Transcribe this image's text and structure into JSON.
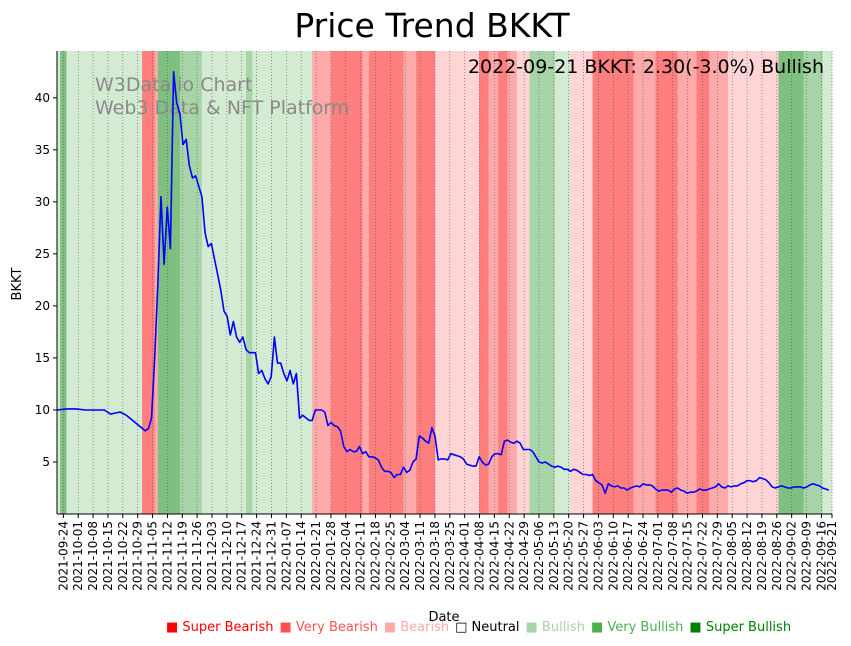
{
  "chart_data": {
    "type": "line",
    "title": "Price Trend BKKT",
    "xlabel": "Date",
    "ylabel": "BKKT",
    "ylim": [
      0,
      44.5
    ],
    "yticks": [
      5,
      10,
      15,
      20,
      25,
      30,
      35,
      40
    ],
    "x_range": [
      "2021-09-21",
      "2022-09-21"
    ],
    "x_ticks": [
      "2021-09-24",
      "2021-10-01",
      "2021-10-08",
      "2021-10-15",
      "2021-10-22",
      "2021-10-29",
      "2021-11-05",
      "2021-11-12",
      "2021-11-19",
      "2021-11-26",
      "2021-12-03",
      "2021-12-10",
      "2021-12-17",
      "2021-12-24",
      "2021-12-31",
      "2022-01-07",
      "2022-01-14",
      "2022-01-21",
      "2022-01-28",
      "2022-02-04",
      "2022-02-11",
      "2022-02-18",
      "2022-02-25",
      "2022-03-04",
      "2022-03-11",
      "2022-03-18",
      "2022-03-25",
      "2022-04-01",
      "2022-04-08",
      "2022-04-15",
      "2022-04-22",
      "2022-04-29",
      "2022-05-06",
      "2022-05-13",
      "2022-05-20",
      "2022-05-27",
      "2022-06-03",
      "2022-06-10",
      "2022-06-17",
      "2022-06-24",
      "2022-07-01",
      "2022-07-08",
      "2022-07-15",
      "2022-07-22",
      "2022-07-29",
      "2022-08-05",
      "2022-08-12",
      "2022-08-19",
      "2022-08-26",
      "2022-09-02",
      "2022-09-09",
      "2022-09-16",
      "2022-09-21"
    ],
    "annotation": "2022-09-21 BKKT: 2.30(-3.0%) Bullish",
    "watermark": [
      "W3Data.io Chart",
      "Web3 Data & NFT Platform"
    ],
    "line_color": "#0000ff",
    "series": [
      {
        "name": "BKKT",
        "points": [
          [
            0,
            10.0
          ],
          [
            3,
            10.1
          ],
          [
            6,
            10.1
          ],
          [
            9,
            10.0
          ],
          [
            12,
            10.0
          ],
          [
            15,
            10.0
          ],
          [
            17,
            9.6
          ],
          [
            20,
            9.8
          ],
          [
            22,
            9.5
          ],
          [
            24,
            9.0
          ],
          [
            26,
            8.5
          ],
          [
            28,
            8.0
          ],
          [
            29,
            8.2
          ],
          [
            30,
            9.2
          ],
          [
            31,
            15.0
          ],
          [
            32,
            22.0
          ],
          [
            33,
            30.5
          ],
          [
            34,
            24.0
          ],
          [
            35,
            29.5
          ],
          [
            36,
            25.5
          ],
          [
            37,
            42.5
          ],
          [
            38,
            39.5
          ],
          [
            39,
            38.5
          ],
          [
            40,
            35.5
          ],
          [
            41,
            36.0
          ],
          [
            42,
            33.5
          ],
          [
            43,
            32.3
          ],
          [
            44,
            32.5
          ],
          [
            45,
            31.5
          ],
          [
            46,
            30.5
          ],
          [
            47,
            27.0
          ],
          [
            48,
            25.7
          ],
          [
            49,
            26.0
          ],
          [
            50,
            24.5
          ],
          [
            51,
            23.0
          ],
          [
            52,
            21.5
          ],
          [
            53,
            19.5
          ],
          [
            54,
            19.0
          ],
          [
            55,
            17.2
          ],
          [
            56,
            18.5
          ],
          [
            57,
            17.0
          ],
          [
            58,
            16.5
          ],
          [
            59,
            17.0
          ],
          [
            60,
            15.8
          ],
          [
            61,
            15.5
          ],
          [
            63,
            15.5
          ],
          [
            64,
            13.5
          ],
          [
            65,
            13.8
          ],
          [
            66,
            13.0
          ],
          [
            67,
            12.5
          ],
          [
            68,
            13.2
          ],
          [
            69,
            17.0
          ],
          [
            70,
            14.5
          ],
          [
            71,
            14.5
          ],
          [
            72,
            13.5
          ],
          [
            73,
            12.8
          ],
          [
            74,
            13.8
          ],
          [
            75,
            12.5
          ],
          [
            76,
            13.5
          ],
          [
            77,
            9.2
          ],
          [
            78,
            9.5
          ],
          [
            80,
            9.0
          ],
          [
            81,
            9.0
          ],
          [
            82,
            10.0
          ],
          [
            84,
            10.0
          ],
          [
            85,
            9.8
          ],
          [
            86,
            8.5
          ],
          [
            87,
            8.8
          ],
          [
            88,
            8.5
          ],
          [
            89,
            8.4
          ],
          [
            90,
            8.0
          ],
          [
            91,
            6.5
          ],
          [
            92,
            6.0
          ],
          [
            93,
            6.2
          ],
          [
            94,
            6.0
          ],
          [
            95,
            6.0
          ],
          [
            96,
            6.5
          ],
          [
            97,
            5.8
          ],
          [
            98,
            6.0
          ],
          [
            99,
            5.5
          ],
          [
            100,
            5.5
          ],
          [
            101,
            5.4
          ],
          [
            102,
            5.2
          ],
          [
            103,
            4.5
          ],
          [
            104,
            4.1
          ],
          [
            105,
            4.1
          ],
          [
            106,
            4.0
          ],
          [
            107,
            3.5
          ],
          [
            108,
            3.8
          ],
          [
            109,
            3.8
          ],
          [
            110,
            4.5
          ],
          [
            111,
            4.0
          ],
          [
            112,
            4.2
          ],
          [
            113,
            5.0
          ],
          [
            114,
            5.3
          ],
          [
            115,
            7.5
          ],
          [
            116,
            7.3
          ],
          [
            117,
            7.0
          ],
          [
            118,
            6.8
          ],
          [
            119,
            8.3
          ],
          [
            120,
            7.5
          ],
          [
            121,
            5.2
          ],
          [
            122,
            5.3
          ],
          [
            123,
            5.3
          ],
          [
            124,
            5.2
          ],
          [
            125,
            5.8
          ],
          [
            126,
            5.7
          ],
          [
            127,
            5.6
          ],
          [
            128,
            5.5
          ],
          [
            129,
            5.3
          ],
          [
            130,
            4.8
          ],
          [
            131,
            4.7
          ],
          [
            132,
            4.6
          ],
          [
            133,
            4.6
          ],
          [
            134,
            5.5
          ],
          [
            135,
            5.0
          ],
          [
            136,
            4.7
          ],
          [
            137,
            4.8
          ],
          [
            138,
            5.5
          ],
          [
            139,
            5.8
          ],
          [
            140,
            5.8
          ],
          [
            141,
            5.7
          ],
          [
            142,
            7.0
          ],
          [
            143,
            7.1
          ],
          [
            144,
            6.9
          ],
          [
            145,
            6.8
          ],
          [
            146,
            7.0
          ],
          [
            147,
            6.8
          ],
          [
            148,
            6.2
          ],
          [
            149,
            6.2
          ],
          [
            150,
            6.2
          ],
          [
            151,
            6.0
          ],
          [
            152,
            5.5
          ],
          [
            153,
            5.0
          ],
          [
            154,
            4.9
          ],
          [
            155,
            5.0
          ],
          [
            156,
            4.8
          ],
          [
            157,
            4.6
          ],
          [
            158,
            4.5
          ],
          [
            159,
            4.6
          ],
          [
            160,
            4.5
          ],
          [
            161,
            4.3
          ],
          [
            162,
            4.3
          ],
          [
            163,
            4.1
          ],
          [
            164,
            4.3
          ],
          [
            165,
            4.2
          ],
          [
            166,
            4.0
          ],
          [
            167,
            3.8
          ],
          [
            168,
            3.8
          ],
          [
            169,
            3.7
          ],
          [
            170,
            3.8
          ],
          [
            171,
            3.2
          ],
          [
            172,
            3.0
          ],
          [
            173,
            2.8
          ],
          [
            174,
            2.0
          ],
          [
            175,
            2.9
          ],
          [
            176,
            2.7
          ],
          [
            177,
            2.6
          ],
          [
            178,
            2.7
          ],
          [
            179,
            2.5
          ],
          [
            180,
            2.5
          ],
          [
            181,
            2.3
          ],
          [
            182,
            2.5
          ],
          [
            183,
            2.6
          ],
          [
            184,
            2.7
          ],
          [
            185,
            2.6
          ],
          [
            186,
            2.9
          ],
          [
            187,
            2.8
          ],
          [
            188,
            2.8
          ],
          [
            189,
            2.7
          ],
          [
            190,
            2.4
          ],
          [
            191,
            2.2
          ],
          [
            192,
            2.3
          ],
          [
            193,
            2.3
          ],
          [
            194,
            2.3
          ],
          [
            195,
            2.1
          ],
          [
            196,
            2.4
          ],
          [
            197,
            2.5
          ],
          [
            198,
            2.3
          ],
          [
            199,
            2.2
          ],
          [
            200,
            2.0
          ],
          [
            201,
            2.1
          ],
          [
            202,
            2.1
          ],
          [
            203,
            2.2
          ],
          [
            204,
            2.4
          ],
          [
            205,
            2.3
          ],
          [
            206,
            2.3
          ],
          [
            207,
            2.4
          ],
          [
            208,
            2.5
          ],
          [
            209,
            2.6
          ],
          [
            210,
            2.9
          ],
          [
            211,
            2.6
          ],
          [
            212,
            2.5
          ],
          [
            213,
            2.7
          ],
          [
            214,
            2.6
          ],
          [
            215,
            2.7
          ],
          [
            216,
            2.7
          ],
          [
            217,
            2.9
          ],
          [
            218,
            3.0
          ],
          [
            219,
            3.2
          ],
          [
            220,
            3.2
          ],
          [
            221,
            3.1
          ],
          [
            222,
            3.2
          ],
          [
            223,
            3.5
          ],
          [
            224,
            3.4
          ],
          [
            225,
            3.3
          ],
          [
            226,
            3.0
          ],
          [
            227,
            2.6
          ],
          [
            228,
            2.5
          ],
          [
            229,
            2.6
          ],
          [
            230,
            2.7
          ],
          [
            231,
            2.6
          ],
          [
            232,
            2.5
          ],
          [
            233,
            2.5
          ],
          [
            234,
            2.6
          ],
          [
            235,
            2.6
          ],
          [
            236,
            2.6
          ],
          [
            237,
            2.5
          ],
          [
            238,
            2.6
          ],
          [
            239,
            2.8
          ],
          [
            240,
            2.9
          ],
          [
            241,
            2.8
          ],
          [
            242,
            2.7
          ],
          [
            243,
            2.5
          ],
          [
            244,
            2.4
          ],
          [
            245,
            2.3
          ]
        ]
      }
    ],
    "sentiment_bands": [
      {
        "from": 0,
        "to": 1,
        "level": "bullish"
      },
      {
        "from": 1,
        "to": 3,
        "level": "very_bullish"
      },
      {
        "from": 3,
        "to": 27,
        "level": "bullish"
      },
      {
        "from": 27,
        "to": 31,
        "level": "very_bearish"
      },
      {
        "from": 31,
        "to": 32,
        "level": "bearish"
      },
      {
        "from": 32,
        "to": 39,
        "level": "very_bullish"
      },
      {
        "from": 39,
        "to": 46,
        "level": "bullish_mid"
      },
      {
        "from": 46,
        "to": 60,
        "level": "bullish"
      },
      {
        "from": 60,
        "to": 62,
        "level": "bullish_mid"
      },
      {
        "from": 62,
        "to": 81,
        "level": "bullish"
      },
      {
        "from": 81,
        "to": 87,
        "level": "bearish"
      },
      {
        "from": 87,
        "to": 97,
        "level": "very_bearish"
      },
      {
        "from": 97,
        "to": 99,
        "level": "bearish"
      },
      {
        "from": 99,
        "to": 110,
        "level": "very_bearish"
      },
      {
        "from": 110,
        "to": 114,
        "level": "bearish"
      },
      {
        "from": 114,
        "to": 120,
        "level": "very_bearish"
      },
      {
        "from": 120,
        "to": 128,
        "level": "bearish_light"
      },
      {
        "from": 128,
        "to": 134,
        "level": "bearish_light"
      },
      {
        "from": 134,
        "to": 137,
        "level": "very_bearish"
      },
      {
        "from": 137,
        "to": 140,
        "level": "bearish"
      },
      {
        "from": 140,
        "to": 143,
        "level": "very_bearish"
      },
      {
        "from": 143,
        "to": 146,
        "level": "bearish"
      },
      {
        "from": 146,
        "to": 150,
        "level": "bearish_light"
      },
      {
        "from": 150,
        "to": 158,
        "level": "bullish_mid"
      },
      {
        "from": 158,
        "to": 163,
        "level": "bullish"
      },
      {
        "from": 163,
        "to": 170,
        "level": "bearish_light"
      },
      {
        "from": 170,
        "to": 183,
        "level": "very_bearish"
      },
      {
        "from": 183,
        "to": 190,
        "level": "bearish"
      },
      {
        "from": 190,
        "to": 197,
        "level": "very_bearish"
      },
      {
        "from": 197,
        "to": 203,
        "level": "bearish"
      },
      {
        "from": 203,
        "to": 207,
        "level": "very_bearish"
      },
      {
        "from": 207,
        "to": 213,
        "level": "bearish"
      },
      {
        "from": 213,
        "to": 229,
        "level": "bearish_light"
      },
      {
        "from": 229,
        "to": 237,
        "level": "very_bullish"
      },
      {
        "from": 237,
        "to": 243,
        "level": "bullish_mid"
      },
      {
        "from": 243,
        "to": 246,
        "level": "bullish"
      }
    ],
    "band_colors": {
      "very_bullish": "#7fbf7f",
      "bullish_mid": "#a8d5a8",
      "bullish": "#d3ead3",
      "very_bearish": "#ff7f7f",
      "bearish": "#ffaaaa",
      "bearish_light": "#ffd4d4"
    },
    "legend": [
      {
        "label": "Super Bearish",
        "color": "#ff0000",
        "symbol": "■"
      },
      {
        "label": "Very Bearish",
        "color": "#ff5050",
        "symbol": "■"
      },
      {
        "label": "Bearish",
        "color": "#ffaaaa",
        "symbol": "■"
      },
      {
        "label": "Neutral",
        "color": "#000000",
        "symbol": "□"
      },
      {
        "label": "Bullish",
        "color": "#a8d5a8",
        "symbol": "■"
      },
      {
        "label": "Very Bullish",
        "color": "#4caf50",
        "symbol": "■"
      },
      {
        "label": "Super Bullish",
        "color": "#008000",
        "symbol": "■"
      }
    ]
  }
}
